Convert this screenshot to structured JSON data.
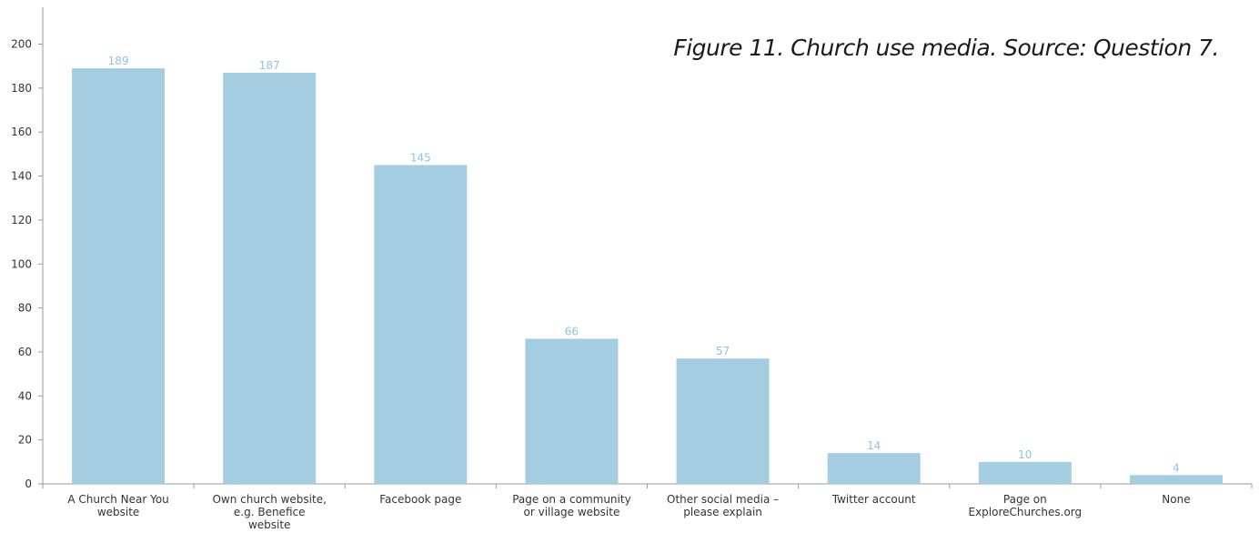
{
  "caption": "Figure 11. Church use media. Source: Question 7.",
  "colors": {
    "bar": "#a4cde2",
    "data_label": "#8fc3de",
    "axis": "#9a9a9a",
    "text": "#333333"
  },
  "chart_data": {
    "type": "bar",
    "title": "",
    "xlabel": "",
    "ylabel": "",
    "ylim": [
      0,
      200
    ],
    "yticks": [
      0,
      20,
      40,
      60,
      80,
      100,
      120,
      140,
      160,
      180,
      200
    ],
    "grid": false,
    "legend": "none",
    "categories": [
      [
        "A Church Near You",
        "website"
      ],
      [
        "Own church website,",
        "e.g. Benefice",
        "website"
      ],
      [
        "Facebook page"
      ],
      [
        "Page on a community",
        "or village website"
      ],
      [
        "Other social media –",
        "please explain"
      ],
      [
        "Twitter account"
      ],
      [
        "Page on",
        "ExploreChurches.org"
      ],
      [
        "None"
      ]
    ],
    "values": [
      189,
      187,
      145,
      66,
      57,
      14,
      10,
      4
    ]
  }
}
